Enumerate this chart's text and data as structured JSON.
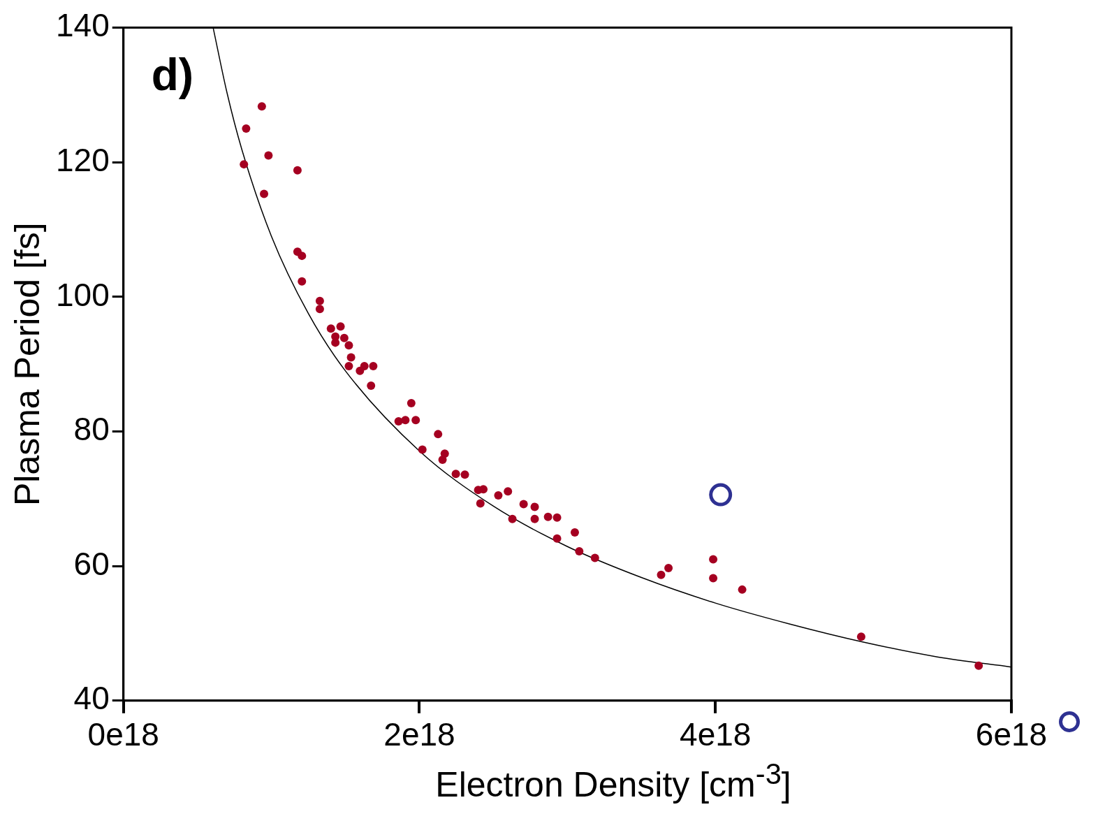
{
  "chart_data": {
    "type": "scatter",
    "xlabel": "Electron Density [cm$^{-3}$]",
    "ylabel": "Plasma Period [fs]",
    "annotations": [
      "d)"
    ],
    "xlim": [
      0,
      6e+18
    ],
    "xticks": [
      {
        "value": 0,
        "label": "0e18"
      },
      {
        "value": 2e+18,
        "label": "2e18"
      },
      {
        "value": 4e+18,
        "label": "4e18"
      },
      {
        "value": 6e+18,
        "label": "6e18"
      }
    ],
    "ylim": [
      40,
      140
    ],
    "yticks": [
      40,
      60,
      80,
      100,
      120,
      140
    ],
    "grid": false,
    "legend": false,
    "series": [
      {
        "marker": "circle",
        "color": "#a50021",
        "x": [
          8.14e+17,
          8.29e+17,
          9.35e+17,
          9.5e+17,
          9.8e+17,
          1.176e+18,
          1.176e+18,
          1.206e+18,
          1.206e+18,
          1.327e+18,
          1.327e+18,
          1.402e+18,
          1.432e+18,
          1.467e+18,
          1.432e+18,
          1.492e+18,
          1.523e+18,
          1.538e+18,
          1.523e+18,
          1.598e+18,
          1.628e+18,
          1.688e+18,
          1.673e+18,
          1.859e+18,
          1.905e+18,
          1.945e+18,
          1.975e+18,
          2.02e+18,
          2.126e+18,
          2.156e+18,
          2.171e+18,
          2.246e+18,
          2.307e+18,
          2.397e+18,
          2.432e+18,
          2.412e+18,
          2.533e+18,
          2.598e+18,
          2.628e+18,
          2.704e+18,
          2.779e+18,
          2.779e+18,
          2.869e+18,
          2.93e+18,
          2.93e+18,
          3.05e+18,
          3.08e+18,
          3.186e+18,
          3.633e+18,
          3.683e+18,
          3.985e+18,
          3.985e+18,
          4.181e+18,
          4.985e+18,
          5.779e+18
        ],
        "values": [
          119.7,
          125.0,
          128.3,
          115.3,
          121.0,
          118.8,
          106.7,
          106.1,
          102.3,
          99.4,
          98.2,
          95.3,
          94.1,
          95.6,
          93.2,
          93.9,
          92.8,
          91.0,
          89.7,
          89.0,
          89.7,
          89.7,
          86.8,
          81.5,
          81.7,
          84.2,
          81.7,
          77.3,
          79.6,
          75.8,
          76.7,
          73.7,
          73.6,
          71.3,
          71.4,
          69.3,
          70.5,
          71.1,
          67.0,
          69.2,
          68.8,
          67.0,
          67.3,
          67.2,
          64.1,
          65.0,
          62.2,
          61.2,
          58.7,
          59.7,
          61.0,
          58.2,
          56.5,
          49.5,
          45.2
        ]
      },
      {
        "marker": "circle",
        "color": "#2e3192",
        "x": [
          4.035e+18
        ],
        "values": [
          70.6
        ]
      },
      {
        "type": "line",
        "color": "#000000",
        "x": [
          6.06e+17,
          7e+17,
          8e+17,
          1e+18,
          1.25e+18,
          1.5e+18,
          2e+18,
          2.5e+18,
          3e+18,
          3.5e+18,
          4e+18,
          4.5e+18,
          5e+18,
          5.5e+18,
          6e+18
        ],
        "values": [
          140.0,
          130.3,
          121.9,
          109.0,
          97.5,
          89.0,
          77.1,
          68.9,
          62.9,
          58.3,
          54.5,
          51.4,
          48.7,
          46.5,
          45.0
        ]
      }
    ]
  }
}
